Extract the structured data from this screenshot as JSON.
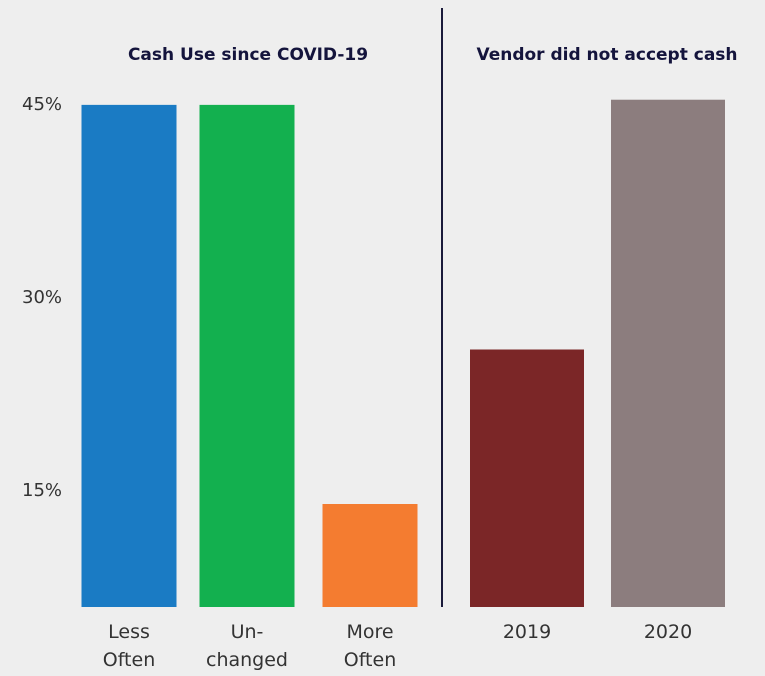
{
  "chart_data": [
    {
      "type": "bar",
      "title": "Cash Use since COVID-19",
      "categories": [
        "Less\nOften",
        "Un-\nchanged",
        "More\nOften"
      ],
      "values": [
        45,
        45,
        14
      ],
      "colors": [
        "#1a7bc4",
        "#13b04f",
        "#f47c30"
      ],
      "ylim": [
        6,
        46
      ],
      "yticks": [
        {
          "value": 15,
          "label": "15%"
        },
        {
          "value": 30,
          "label": "30%"
        },
        {
          "value": 45,
          "label": "45%"
        }
      ]
    },
    {
      "type": "bar",
      "title": "Vendor did not accept cash",
      "categories": [
        "2019",
        "2020"
      ],
      "values": [
        26,
        45.4
      ],
      "colors": [
        "#7b2627",
        "#8c7d7e"
      ],
      "ylim": [
        6,
        46
      ]
    }
  ]
}
